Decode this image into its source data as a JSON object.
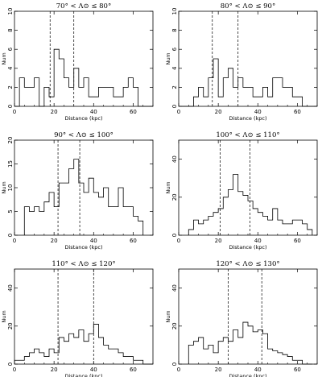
{
  "chart_data": [
    {
      "type": "histogram",
      "title": "70° < Λ⊙ ≤ 80°",
      "xlabel": "Distance (kpc)",
      "ylabel": "Num",
      "xlim": [
        0,
        70
      ],
      "ylim": [
        0,
        10
      ],
      "xticks": [
        0,
        20,
        40,
        60
      ],
      "yticks": [
        0,
        2,
        4,
        6,
        8,
        10
      ],
      "bin_width": 2.5,
      "x_start": 0,
      "values": [
        0,
        3,
        2,
        2,
        3,
        0,
        2,
        1,
        6,
        5,
        3,
        2,
        4,
        2,
        3,
        1,
        1,
        2,
        2,
        2,
        1,
        1,
        2,
        3,
        2,
        0,
        0,
        0
      ],
      "vlines": [
        18,
        30
      ]
    },
    {
      "type": "histogram",
      "title": "80° < Λ⊙ ≤ 90°",
      "xlabel": "Distance (kpc)",
      "ylabel": "Num",
      "xlim": [
        0,
        70
      ],
      "ylim": [
        0,
        10
      ],
      "xticks": [
        0,
        20,
        40,
        60
      ],
      "yticks": [
        0,
        2,
        4,
        6,
        8,
        10
      ],
      "bin_width": 2.5,
      "x_start": 0,
      "values": [
        0,
        0,
        0,
        1,
        2,
        1,
        3,
        5,
        1,
        3,
        4,
        2,
        3,
        2,
        2,
        1,
        1,
        2,
        1,
        3,
        3,
        2,
        2,
        1,
        1,
        0,
        0,
        0
      ],
      "vlines": [
        17,
        30
      ]
    },
    {
      "type": "histogram",
      "title": "90° < Λ⊙ ≤ 100°",
      "xlabel": "Distance (kpc)",
      "ylabel": "Num",
      "xlim": [
        0,
        70
      ],
      "ylim": [
        0,
        20
      ],
      "xticks": [
        0,
        20,
        40,
        60
      ],
      "yticks": [
        0,
        5,
        10,
        15,
        20
      ],
      "bin_width": 2.5,
      "x_start": 5,
      "values": [
        6,
        5,
        6,
        5,
        7,
        9,
        6,
        11,
        11,
        14,
        16,
        11,
        9,
        12,
        9,
        8,
        10,
        6,
        6,
        10,
        6,
        6,
        4,
        3
      ],
      "vlines": [
        22,
        33
      ]
    },
    {
      "type": "histogram",
      "title": "100° < Λ⊙ ≤ 110°",
      "xlabel": "Distance (kpc)",
      "ylabel": "Num",
      "xlim": [
        0,
        70
      ],
      "ylim": [
        0,
        50
      ],
      "xticks": [
        0,
        20,
        40,
        60
      ],
      "yticks": [
        0,
        20,
        40
      ],
      "bin_width": 2.5,
      "x_start": 5,
      "values": [
        3,
        8,
        6,
        8,
        10,
        12,
        14,
        20,
        24,
        32,
        23,
        21,
        18,
        14,
        12,
        10,
        8,
        14,
        8,
        6,
        6,
        8,
        8,
        6,
        3
      ],
      "vlines": [
        21,
        36
      ]
    },
    {
      "type": "histogram",
      "title": "110° < Λ⊙ ≤ 120°",
      "xlabel": "Distance (kpc)",
      "ylabel": "Num",
      "xlim": [
        0,
        70
      ],
      "ylim": [
        0,
        50
      ],
      "xticks": [
        0,
        20,
        40,
        60
      ],
      "yticks": [
        0,
        20,
        40
      ],
      "bin_width": 2.5,
      "x_start": 0,
      "values": [
        2,
        2,
        4,
        6,
        8,
        6,
        4,
        8,
        6,
        14,
        12,
        16,
        14,
        18,
        12,
        16,
        21,
        14,
        10,
        8,
        8,
        6,
        4,
        4,
        2,
        2,
        0,
        0
      ],
      "vlines": [
        22,
        40
      ]
    },
    {
      "type": "histogram",
      "title": "120° < Λ⊙ ≤ 130°",
      "xlabel": "Distance (kpc)",
      "ylabel": "Num",
      "xlim": [
        0,
        70
      ],
      "ylim": [
        0,
        50
      ],
      "xticks": [
        0,
        20,
        40,
        60
      ],
      "yticks": [
        0,
        20,
        40
      ],
      "bin_width": 2.5,
      "x_start": 5,
      "values": [
        10,
        12,
        14,
        8,
        10,
        6,
        12,
        14,
        12,
        18,
        14,
        22,
        20,
        17,
        18,
        16,
        8,
        7,
        6,
        5,
        4,
        2,
        2,
        0,
        0
      ],
      "vlines": [
        25,
        42
      ]
    }
  ]
}
